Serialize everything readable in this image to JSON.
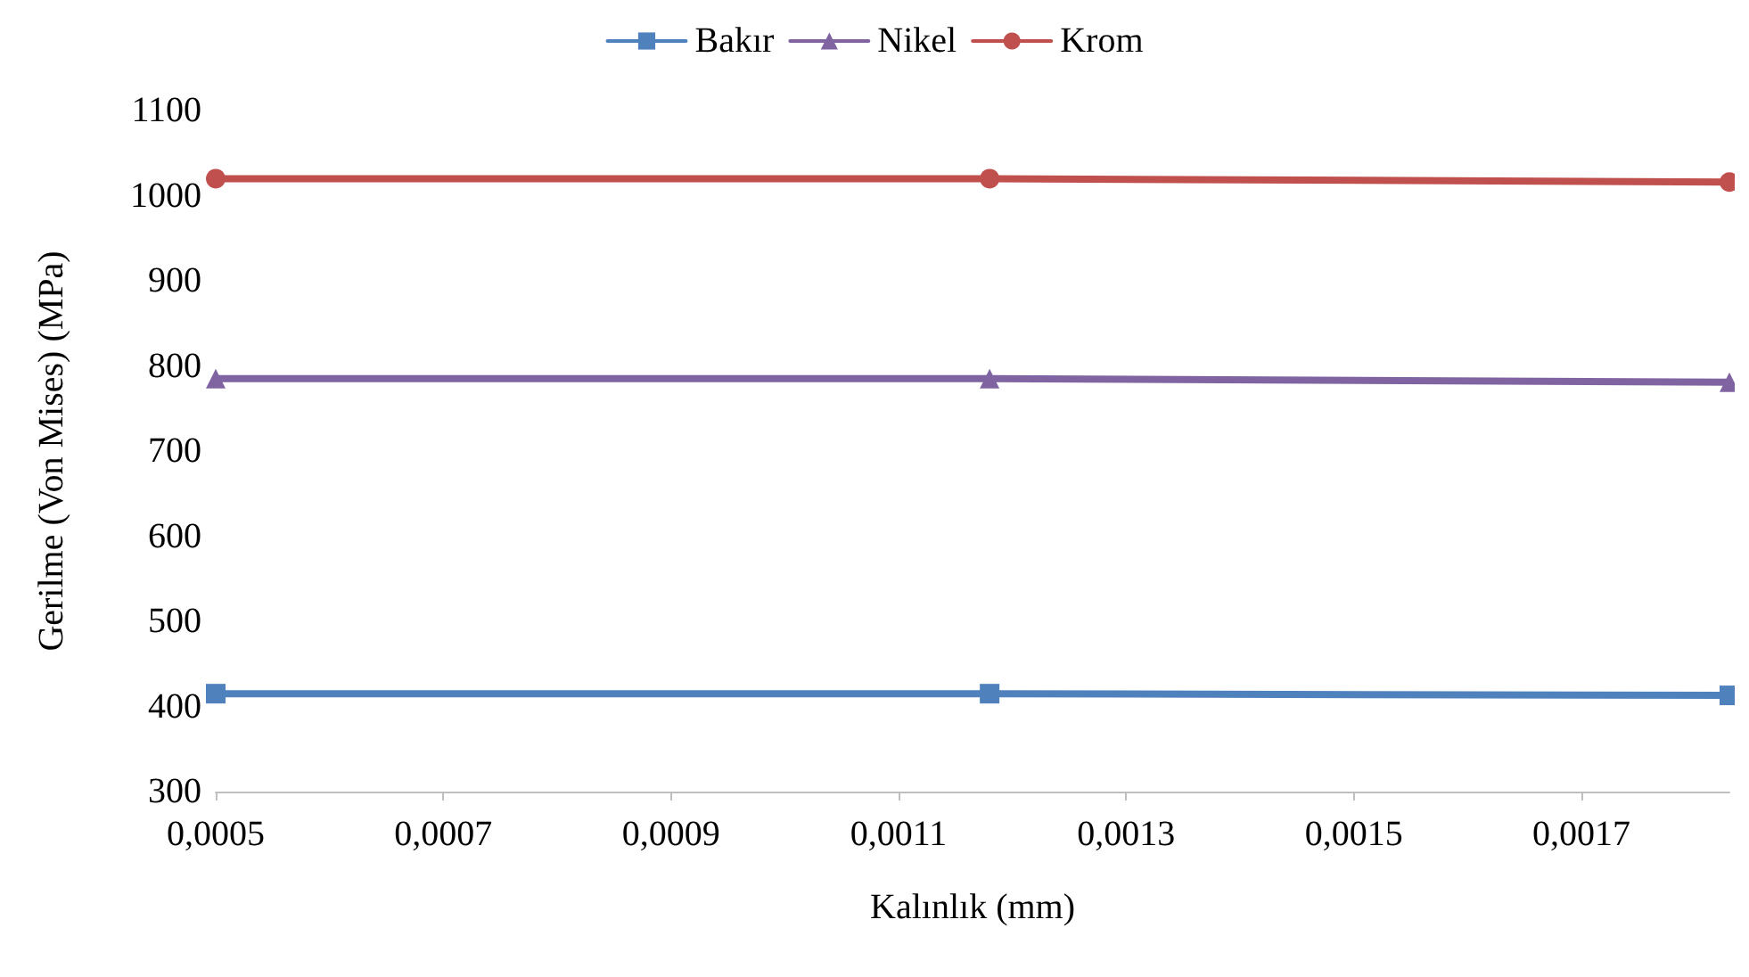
{
  "chart_data": {
    "type": "line",
    "xlabel": "Kalınlık (mm)",
    "ylabel": "Gerilme (Von Mises) (MPa)",
    "x": [
      0.0005,
      0.00118,
      0.00183
    ],
    "series": [
      {
        "name": "Bakır",
        "color": "#4f81bd",
        "marker": "square",
        "values": [
          415,
          415,
          413
        ]
      },
      {
        "name": "Nikel",
        "color": "#8064a2",
        "marker": "triangle",
        "values": [
          785,
          785,
          781
        ]
      },
      {
        "name": "Krom",
        "color": "#c0504d",
        "marker": "circle",
        "values": [
          1020,
          1020,
          1016
        ]
      }
    ],
    "xlim": [
      0.0005,
      0.00183
    ],
    "xticks": [
      {
        "value": 0.0005,
        "label": "0,0005"
      },
      {
        "value": 0.0007,
        "label": "0,0007"
      },
      {
        "value": 0.0009,
        "label": "0,0009"
      },
      {
        "value": 0.0011,
        "label": "0,0011"
      },
      {
        "value": 0.0013,
        "label": "0,0013"
      },
      {
        "value": 0.0015,
        "label": "0,0015"
      },
      {
        "value": 0.0017,
        "label": "0,0017"
      }
    ],
    "ylim": [
      300,
      1100
    ],
    "yticks": [
      300,
      400,
      500,
      600,
      700,
      800,
      900,
      1000,
      1100
    ],
    "grid": false,
    "legend": "top",
    "line_style": "solid"
  }
}
